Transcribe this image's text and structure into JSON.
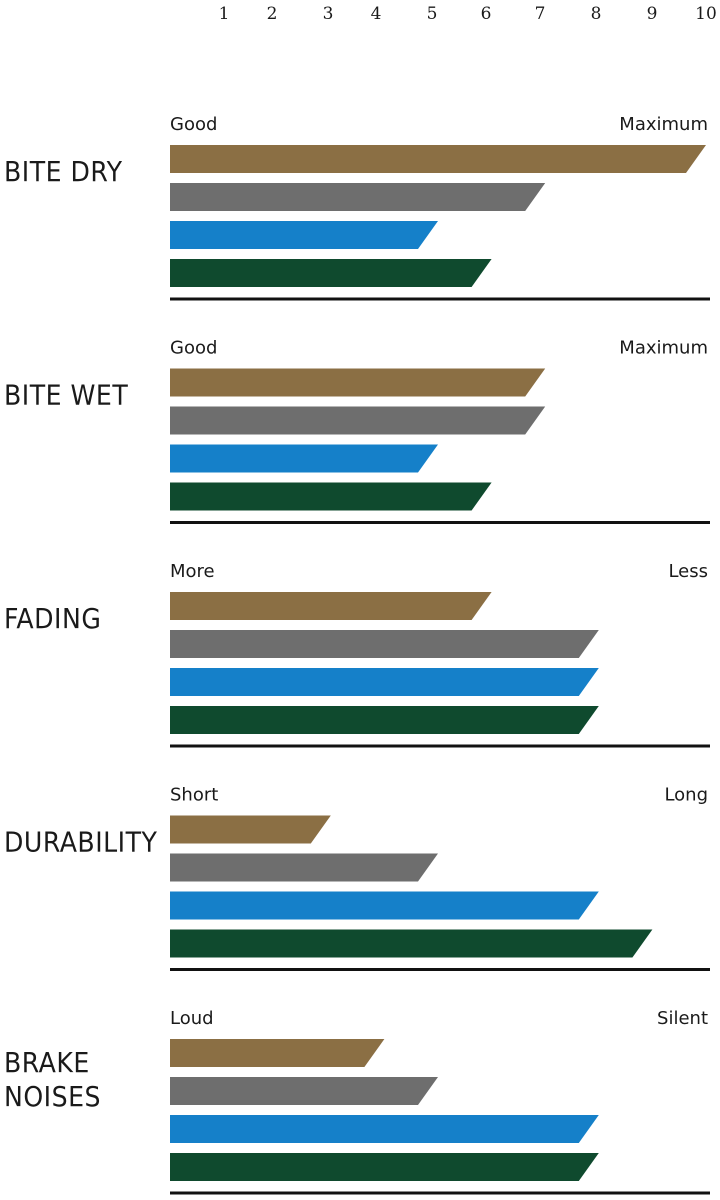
{
  "chart_data": {
    "type": "bar",
    "x_ticks": [
      1,
      2,
      3,
      4,
      5,
      6,
      7,
      8,
      9,
      10
    ],
    "xlim": [
      0,
      10
    ],
    "colors": [
      "#8b6f44",
      "#6e6e6e",
      "#1580c9",
      "#0f4a2e"
    ],
    "groups": [
      {
        "label_lines": [
          "BITE DRY"
        ],
        "scale_low": "Good",
        "scale_high": "Maximum",
        "values": [
          10.0,
          7.0,
          5.0,
          6.0
        ]
      },
      {
        "label_lines": [
          "BITE WET"
        ],
        "scale_low": "Good",
        "scale_high": "Maximum",
        "values": [
          7.0,
          7.0,
          5.0,
          6.0
        ]
      },
      {
        "label_lines": [
          "FADING"
        ],
        "scale_low": "More",
        "scale_high": "Less",
        "values": [
          6.0,
          8.0,
          8.0,
          8.0
        ]
      },
      {
        "label_lines": [
          "DURABILITY"
        ],
        "scale_low": "Short",
        "scale_high": "Long",
        "values": [
          3.0,
          5.0,
          8.0,
          9.0
        ]
      },
      {
        "label_lines": [
          "BRAKE",
          "NOISES"
        ],
        "scale_low": "Loud",
        "scale_high": "Silent",
        "values": [
          4.0,
          5.0,
          8.0,
          8.0
        ]
      }
    ]
  }
}
